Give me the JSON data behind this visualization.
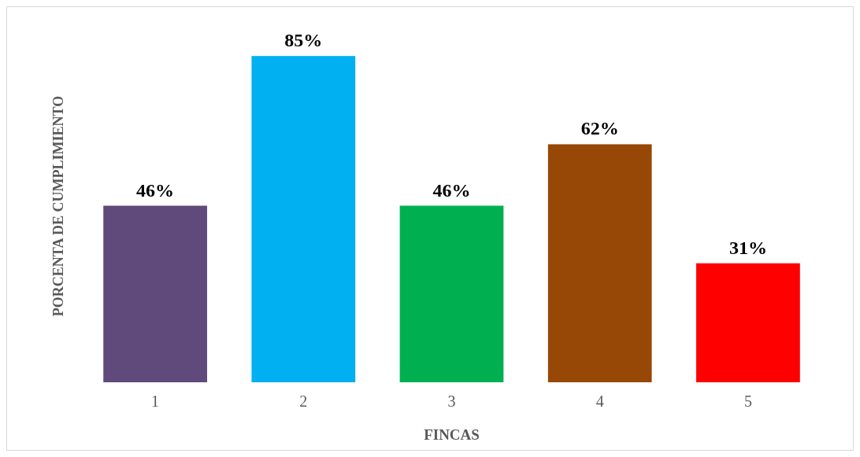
{
  "chart_data": {
    "type": "bar",
    "xlabel": "FINCAS",
    "ylabel": "PORCENTA DE CUMPLIMIENTO",
    "categories": [
      "1",
      "2",
      "3",
      "4",
      "5"
    ],
    "values": [
      46,
      85,
      46,
      62,
      31
    ],
    "colors": [
      "#604a7b",
      "#00b0f0",
      "#00b050",
      "#974706",
      "#ff0000"
    ],
    "value_labels": [
      "46%",
      "85%",
      "46%",
      "62%",
      "31%"
    ]
  }
}
